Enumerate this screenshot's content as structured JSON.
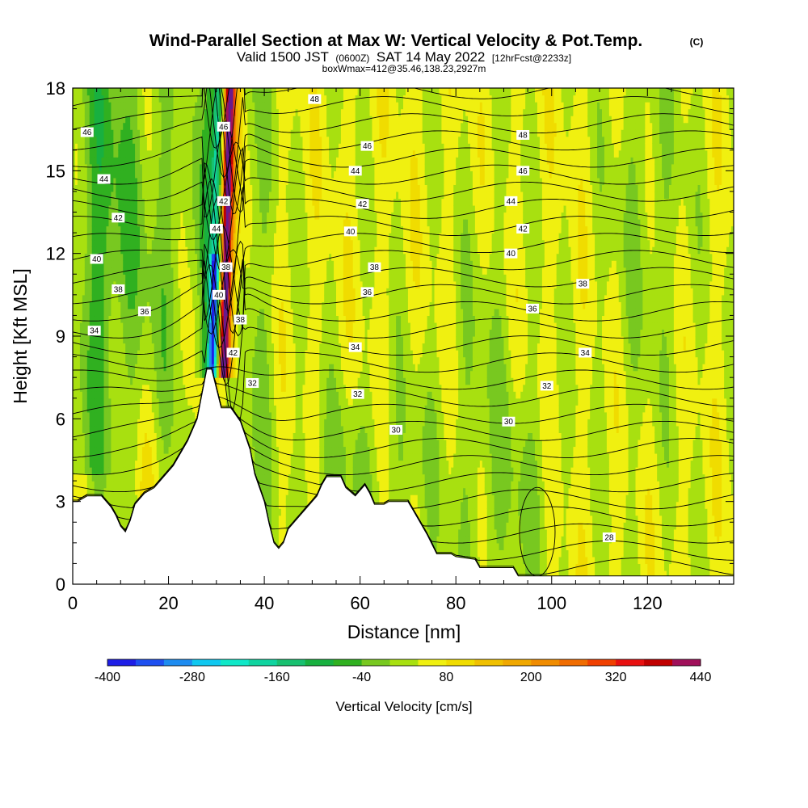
{
  "title": "Wind-Parallel Section at Max W: Vertical Velocity & Pot.Temp.",
  "title_suffix": "(C)",
  "subtitle": {
    "valid_prefix": "Valid 1500 JST",
    "utc": "(0600Z)",
    "date": "SAT 14 May 2022",
    "forecast": "[12hrFcst@2233z]"
  },
  "subtitle2": "boxWmax=412@35.46,138.23,2927m",
  "chart_data": {
    "type": "heatmap",
    "xlabel": "Distance [nm]",
    "ylabel": "Height [Kft MSL]",
    "xlim": [
      0,
      138
    ],
    "ylim": [
      0,
      18
    ],
    "x_ticks": [
      "0",
      "20",
      "40",
      "60",
      "80",
      "100",
      "120"
    ],
    "y_ticks": [
      "0",
      "3",
      "6",
      "9",
      "12",
      "15",
      "18"
    ],
    "colorbar": {
      "label": "Vertical Velocity [cm/s]",
      "min": -400,
      "max": 440,
      "step": 40,
      "tick_labels": [
        "-400",
        "-280",
        "-160",
        "-40",
        "80",
        "200",
        "320",
        "440"
      ],
      "colors": [
        "#1e1ee6",
        "#1e50f0",
        "#1e8cf0",
        "#10c8f0",
        "#10e8c8",
        "#10d4a0",
        "#18c070",
        "#18b040",
        "#30b020",
        "#78c820",
        "#a8e010",
        "#f0f010",
        "#f0dc00",
        "#f0c000",
        "#f0a800",
        "#f08c00",
        "#f06c00",
        "#f04000",
        "#e81010",
        "#c00000",
        "#a0105a",
        "#681a8c"
      ]
    },
    "terrain_kft": [
      [
        0,
        3.0
      ],
      [
        1,
        3.0
      ],
      [
        3,
        3.2
      ],
      [
        6,
        3.2
      ],
      [
        8,
        2.8
      ],
      [
        9,
        2.5
      ],
      [
        10,
        2.1
      ],
      [
        11,
        1.9
      ],
      [
        12,
        2.3
      ],
      [
        13,
        2.9
      ],
      [
        15,
        3.3
      ],
      [
        17,
        3.5
      ],
      [
        19,
        3.9
      ],
      [
        21,
        4.3
      ],
      [
        24,
        5.2
      ],
      [
        26,
        6.0
      ],
      [
        27,
        6.9
      ],
      [
        28,
        7.8
      ],
      [
        29,
        7.8
      ],
      [
        30,
        7.1
      ],
      [
        31,
        6.4
      ],
      [
        33,
        6.4
      ],
      [
        35,
        5.9
      ],
      [
        36,
        5.4
      ],
      [
        37,
        4.9
      ],
      [
        38,
        4.0
      ],
      [
        40,
        3.0
      ],
      [
        41,
        2.2
      ],
      [
        42,
        1.5
      ],
      [
        43,
        1.3
      ],
      [
        44,
        1.5
      ],
      [
        45,
        2.0
      ],
      [
        47,
        2.4
      ],
      [
        49,
        2.8
      ],
      [
        51,
        3.2
      ],
      [
        52,
        3.6
      ],
      [
        53,
        3.9
      ],
      [
        56,
        3.9
      ],
      [
        57,
        3.5
      ],
      [
        59,
        3.2
      ],
      [
        61,
        3.6
      ],
      [
        62,
        3.3
      ],
      [
        63,
        2.9
      ],
      [
        65,
        2.9
      ],
      [
        66,
        3.0
      ],
      [
        68,
        3.0
      ],
      [
        70,
        3.0
      ],
      [
        71,
        2.7
      ],
      [
        72,
        2.4
      ],
      [
        74,
        1.8
      ],
      [
        76,
        1.1
      ],
      [
        79,
        1.1
      ],
      [
        80,
        1.0
      ],
      [
        84,
        0.9
      ],
      [
        85,
        0.6
      ],
      [
        92,
        0.6
      ],
      [
        93,
        0.3
      ],
      [
        138,
        0.3
      ]
    ],
    "theta_labels": [
      {
        "x": 3,
        "y": 16.4,
        "t": "46"
      },
      {
        "x": 6.5,
        "y": 14.7,
        "t": "44"
      },
      {
        "x": 9.5,
        "y": 13.3,
        "t": "42"
      },
      {
        "x": 5,
        "y": 11.8,
        "t": "40"
      },
      {
        "x": 9.5,
        "y": 10.7,
        "t": "38"
      },
      {
        "x": 15,
        "y": 9.9,
        "t": "36"
      },
      {
        "x": 4.5,
        "y": 9.2,
        "t": "34"
      },
      {
        "x": 50.5,
        "y": 17.6,
        "t": "48"
      },
      {
        "x": 31.5,
        "y": 16.6,
        "t": "46"
      },
      {
        "x": 31.5,
        "y": 13.9,
        "t": "42"
      },
      {
        "x": 30,
        "y": 12.9,
        "t": "44"
      },
      {
        "x": 32,
        "y": 11.5,
        "t": "38"
      },
      {
        "x": 30.5,
        "y": 10.5,
        "t": "40"
      },
      {
        "x": 35,
        "y": 9.6,
        "t": "38"
      },
      {
        "x": 33.5,
        "y": 8.4,
        "t": "42"
      },
      {
        "x": 37.5,
        "y": 7.3,
        "t": "32"
      },
      {
        "x": 61.5,
        "y": 15.9,
        "t": "46"
      },
      {
        "x": 59,
        "y": 15.0,
        "t": "44"
      },
      {
        "x": 60.5,
        "y": 13.8,
        "t": "42"
      },
      {
        "x": 58,
        "y": 12.8,
        "t": "40"
      },
      {
        "x": 63,
        "y": 11.5,
        "t": "38"
      },
      {
        "x": 61.5,
        "y": 10.6,
        "t": "36"
      },
      {
        "x": 59,
        "y": 8.6,
        "t": "34"
      },
      {
        "x": 59.5,
        "y": 6.9,
        "t": "32"
      },
      {
        "x": 67.5,
        "y": 5.6,
        "t": "30"
      },
      {
        "x": 94,
        "y": 16.3,
        "t": "48"
      },
      {
        "x": 94,
        "y": 15.0,
        "t": "46"
      },
      {
        "x": 91.5,
        "y": 13.9,
        "t": "44"
      },
      {
        "x": 94,
        "y": 12.9,
        "t": "42"
      },
      {
        "x": 91.5,
        "y": 12.0,
        "t": "40"
      },
      {
        "x": 106.5,
        "y": 10.9,
        "t": "38"
      },
      {
        "x": 96,
        "y": 10.0,
        "t": "36"
      },
      {
        "x": 107,
        "y": 8.4,
        "t": "34"
      },
      {
        "x": 99,
        "y": 7.2,
        "t": "32"
      },
      {
        "x": 91,
        "y": 5.9,
        "t": "30"
      },
      {
        "x": 112,
        "y": 1.7,
        "t": "28"
      }
    ]
  }
}
